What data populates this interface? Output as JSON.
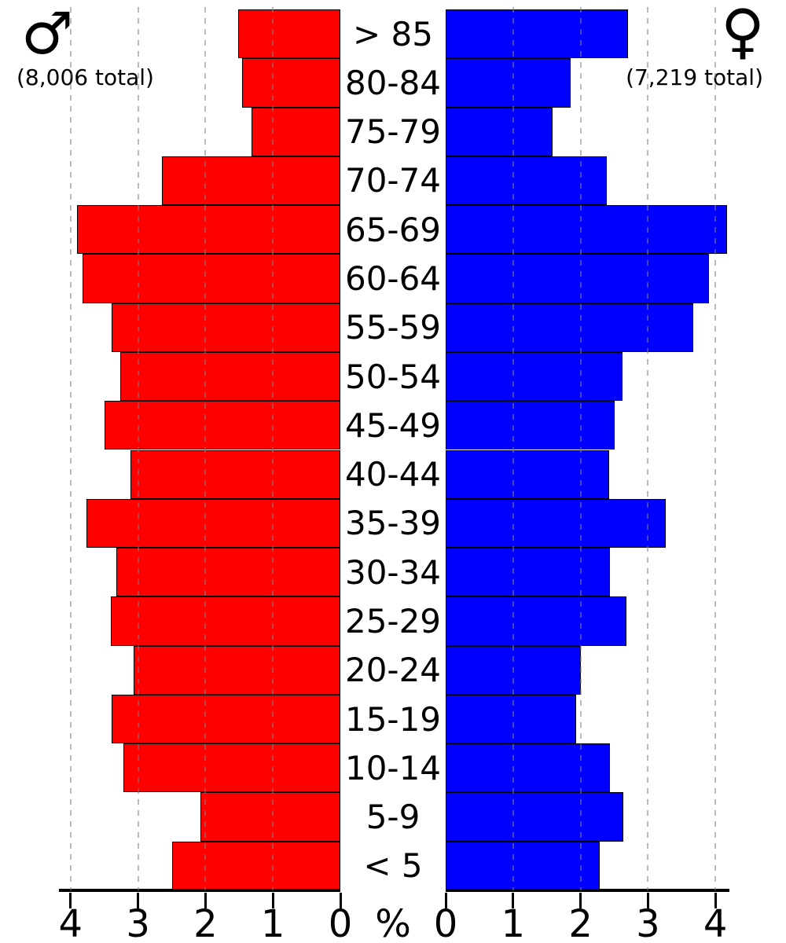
{
  "chart_data": {
    "type": "bar",
    "subtype": "population-pyramid",
    "title": "",
    "xlabel": "%",
    "categories": [
      "> 85",
      "80-84",
      "75-79",
      "70-74",
      "65-69",
      "60-64",
      "55-59",
      "50-54",
      "45-49",
      "40-44",
      "35-39",
      "30-34",
      "25-29",
      "20-24",
      "15-19",
      "10-14",
      "5-9",
      "< 5"
    ],
    "series": [
      {
        "name": "male",
        "side": "left",
        "symbol": "♂",
        "total_label": "(8,006 total)",
        "color": "#ff0000",
        "values": [
          1.51,
          1.46,
          1.32,
          2.65,
          3.9,
          3.82,
          3.39,
          3.26,
          3.5,
          3.11,
          3.76,
          3.32,
          3.4,
          3.07,
          3.39,
          3.22,
          2.07,
          2.49
        ]
      },
      {
        "name": "female",
        "side": "right",
        "symbol": "♀",
        "total_label": "(7,219 total)",
        "color": "#0000ff",
        "values": [
          2.7,
          1.85,
          1.59,
          2.39,
          4.17,
          3.9,
          3.67,
          2.62,
          2.51,
          2.43,
          3.26,
          2.44,
          2.68,
          2.0,
          1.94,
          2.44,
          2.63,
          2.28
        ]
      }
    ],
    "x_ticks_left": [
      "4",
      "3",
      "2",
      "1",
      "0"
    ],
    "x_ticks_right": [
      "0",
      "1",
      "2",
      "3",
      "4"
    ],
    "xlim": [
      0,
      4.2
    ],
    "grid": "dashed vertical gridlines at 1,2,3,4 on both sides, drawn over bars",
    "legend_position": "top corners"
  }
}
